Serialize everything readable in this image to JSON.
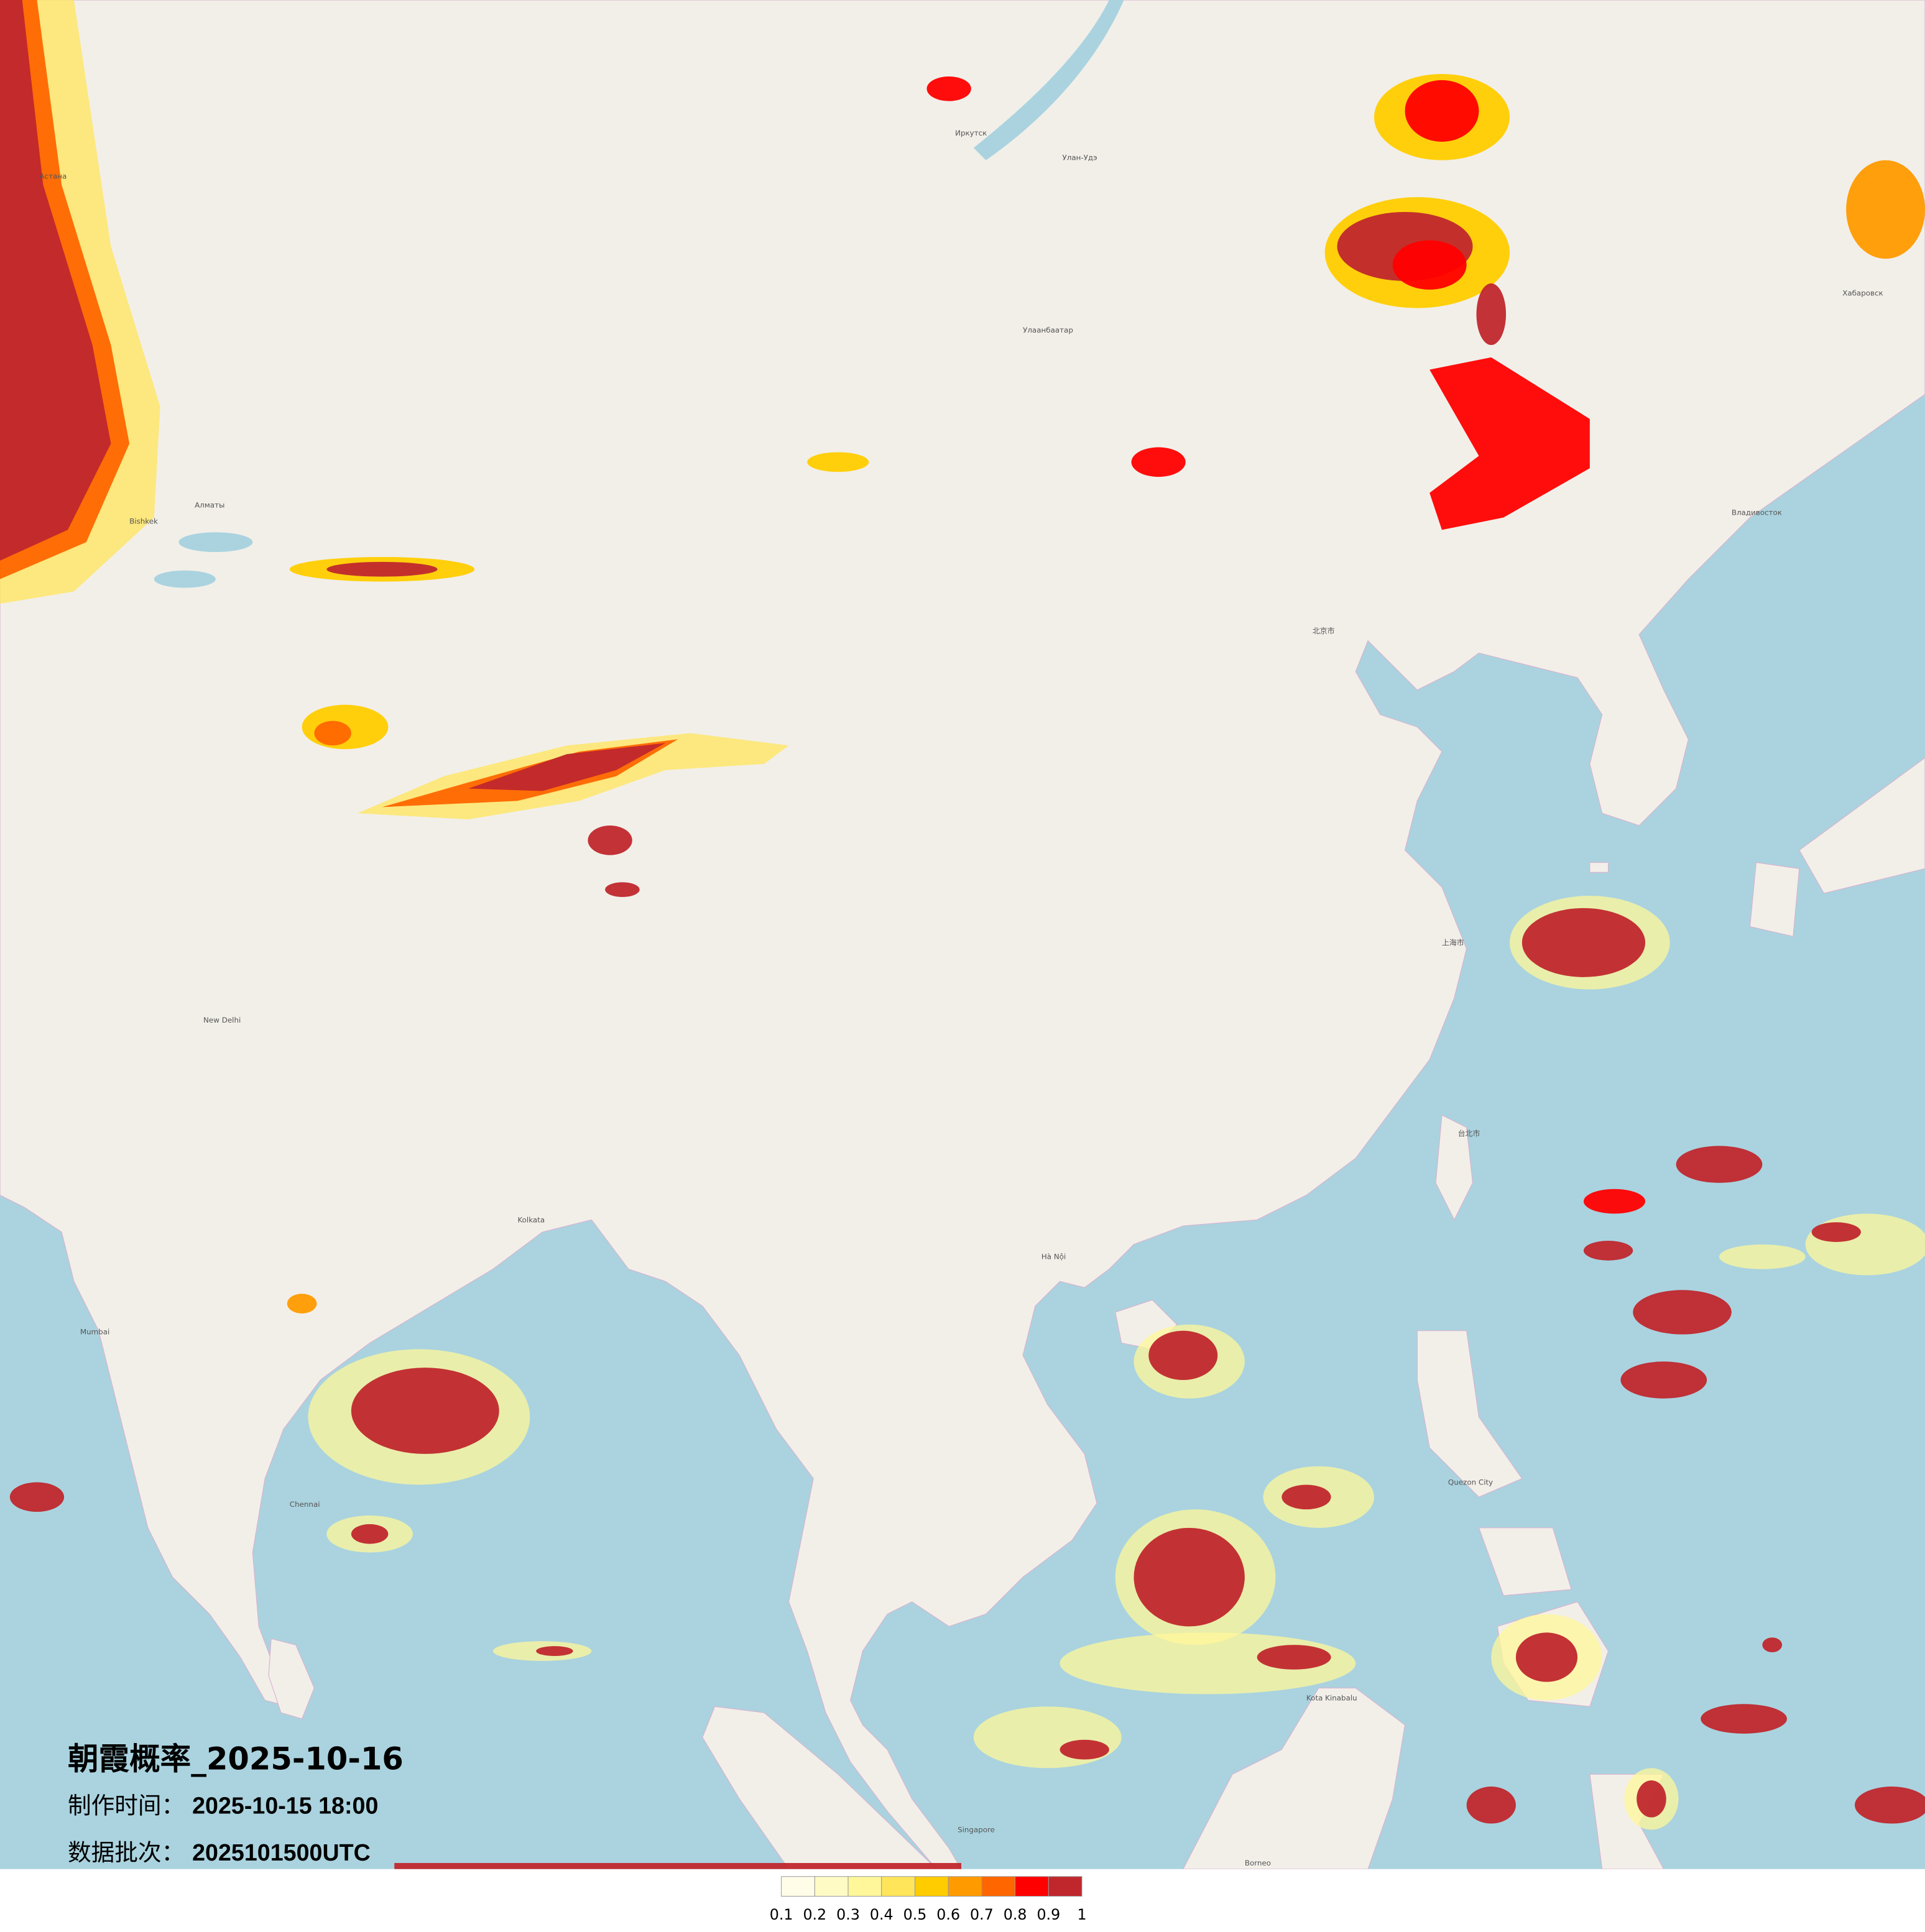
{
  "title": "朝霞概率_2025-10-16",
  "meta": {
    "production_label": "制作时间：",
    "production_time": "2025-10-15 18:00",
    "batch_label": "数据批次：",
    "batch": "2025101500UTC"
  },
  "legend": {
    "ticks": [
      "0.1",
      "0.2",
      "0.3",
      "0.4",
      "0.5",
      "0.6",
      "0.7",
      "0.8",
      "0.9",
      "1"
    ],
    "colors": [
      "#fffde8",
      "#fffbc4",
      "#fff799",
      "#ffe55a",
      "#ffcc00",
      "#ff9a00",
      "#ff6600",
      "#ff0000",
      "#c0272d"
    ]
  },
  "map_colors": {
    "land": "#f2efe9",
    "sea": "#aad3df",
    "border": "#d8b4d0"
  },
  "cities": [
    {
      "name": "Улаанбаатар"
    },
    {
      "name": "Иркутск"
    },
    {
      "name": "Улан-Удэ"
    },
    {
      "name": "Хабаровск"
    },
    {
      "name": "Алматы"
    },
    {
      "name": "New Delhi"
    },
    {
      "name": "Kolkata"
    },
    {
      "name": "Mumbai"
    },
    {
      "name": "Chennai"
    },
    {
      "name": "Hà Nội"
    },
    {
      "name": "北京市"
    },
    {
      "name": "上海市"
    },
    {
      "name": "台北市"
    },
    {
      "name": "Quezon City"
    },
    {
      "name": "Singapore"
    },
    {
      "name": "Kota Kinabalu"
    },
    {
      "name": "Borneo"
    },
    {
      "name": "Владивосток"
    },
    {
      "name": "Астана"
    },
    {
      "name": "Bishkek"
    }
  ]
}
